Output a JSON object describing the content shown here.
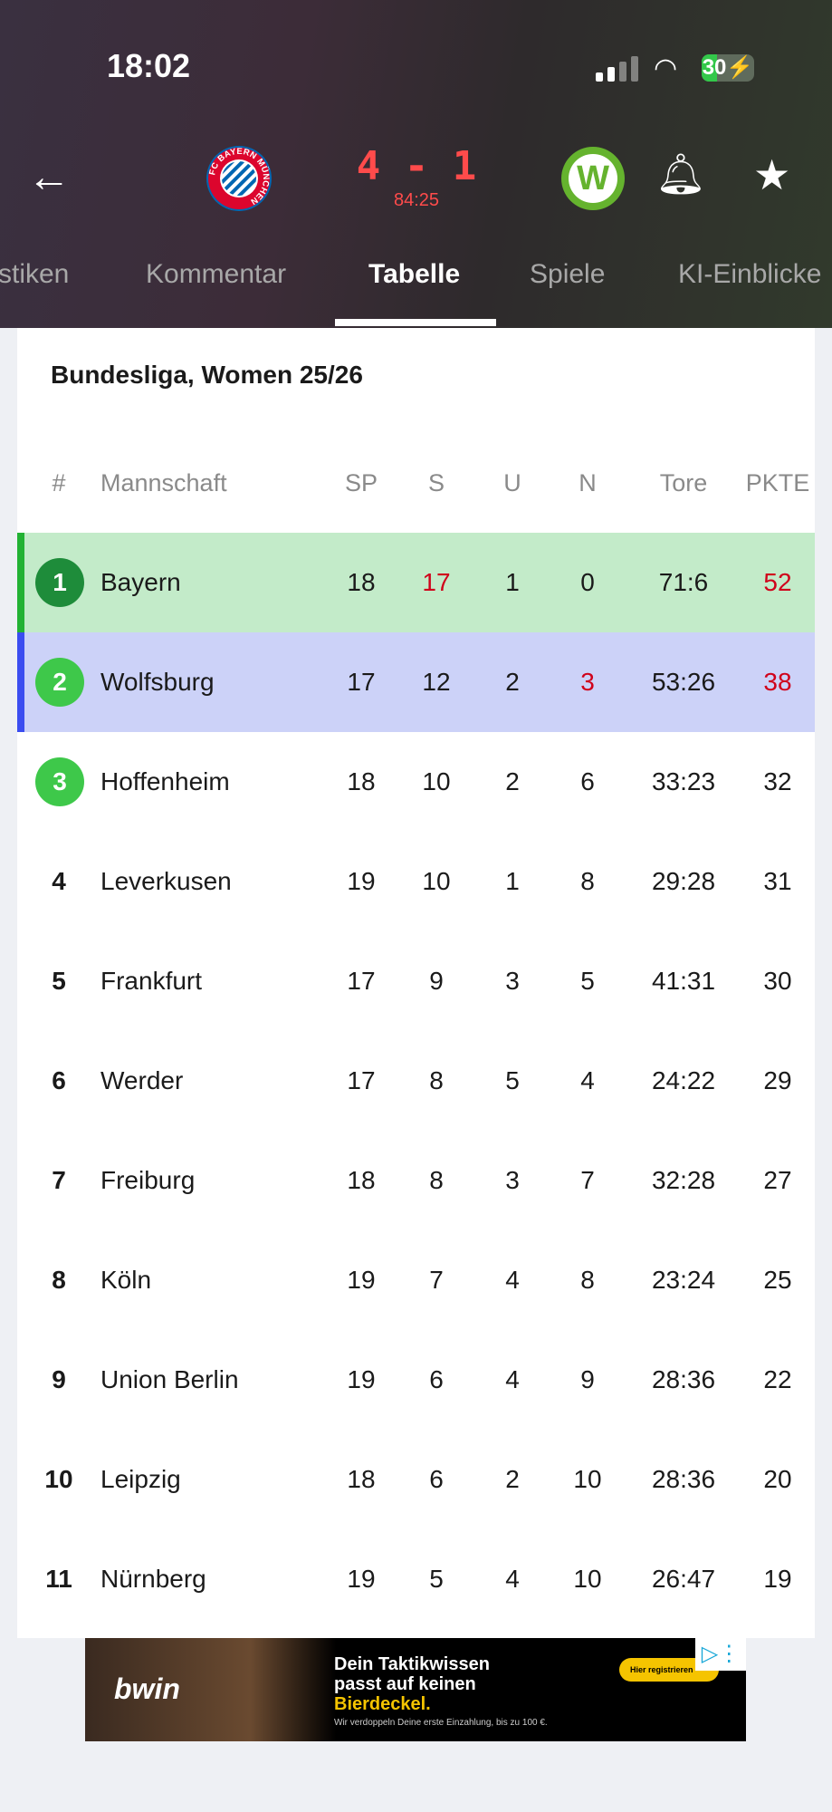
{
  "status": {
    "time": "18:02",
    "battery": "30",
    "battery_level_percent": 30
  },
  "match": {
    "score": "4 - 1",
    "clock": "84:25",
    "home_logo_text": "FC BAYERN MÜNCHEN",
    "away_logo_text": "W"
  },
  "tabs": [
    {
      "label": "stiken"
    },
    {
      "label": "Kommentar"
    },
    {
      "label": "Tabelle",
      "active": true
    },
    {
      "label": "Spiele"
    },
    {
      "label": "KI-Einblicke"
    }
  ],
  "table": {
    "title": "Bundesliga, Women 25/26",
    "headers": {
      "pos": "#",
      "team": "Mannschaft",
      "sp": "SP",
      "s": "S",
      "u": "U",
      "n": "N",
      "tore": "Tore",
      "pk": "PKTE"
    },
    "rows": [
      {
        "pos": "1",
        "team": "Bayern",
        "sp": "18",
        "s": "17",
        "u": "1",
        "n": "0",
        "tore": "71:6",
        "pk": "52"
      },
      {
        "pos": "2",
        "team": "Wolfsburg",
        "sp": "17",
        "s": "12",
        "u": "2",
        "n": "3",
        "tore": "53:26",
        "pk": "38"
      },
      {
        "pos": "3",
        "team": "Hoffenheim",
        "sp": "18",
        "s": "10",
        "u": "2",
        "n": "6",
        "tore": "33:23",
        "pk": "32"
      },
      {
        "pos": "4",
        "team": "Leverkusen",
        "sp": "19",
        "s": "10",
        "u": "1",
        "n": "8",
        "tore": "29:28",
        "pk": "31"
      },
      {
        "pos": "5",
        "team": "Frankfurt",
        "sp": "17",
        "s": "9",
        "u": "3",
        "n": "5",
        "tore": "41:31",
        "pk": "30"
      },
      {
        "pos": "6",
        "team": "Werder",
        "sp": "17",
        "s": "8",
        "u": "5",
        "n": "4",
        "tore": "24:22",
        "pk": "29"
      },
      {
        "pos": "7",
        "team": "Freiburg",
        "sp": "18",
        "s": "8",
        "u": "3",
        "n": "7",
        "tore": "32:28",
        "pk": "27"
      },
      {
        "pos": "8",
        "team": "Köln",
        "sp": "19",
        "s": "7",
        "u": "4",
        "n": "8",
        "tore": "23:24",
        "pk": "25"
      },
      {
        "pos": "9",
        "team": "Union Berlin",
        "sp": "19",
        "s": "6",
        "u": "4",
        "n": "9",
        "tore": "28:36",
        "pk": "22"
      },
      {
        "pos": "10",
        "team": "Leipzig",
        "sp": "18",
        "s": "6",
        "u": "2",
        "n": "10",
        "tore": "28:36",
        "pk": "20"
      },
      {
        "pos": "11",
        "team": "Nürnberg",
        "sp": "19",
        "s": "5",
        "u": "4",
        "n": "10",
        "tore": "26:47",
        "pk": "19"
      }
    ]
  },
  "colors": {
    "row1_bg": "#c3ebc9",
    "row1_bar": "#22b233",
    "row2_bg": "#ccd2f8",
    "row2_bar": "#3b4df0",
    "badge1": "#1e8c3a",
    "badge23": "#3ec84a",
    "highlight_red": "#d0021b"
  },
  "ad": {
    "brand": "bwin",
    "line1": "Dein Taktikwissen",
    "line2": "passt auf keinen",
    "line3": "Bierdeckel.",
    "small": "Wir verdoppeln Deine erste Einzahlung, bis zu 100 €.",
    "cta": "Hier registrieren"
  }
}
